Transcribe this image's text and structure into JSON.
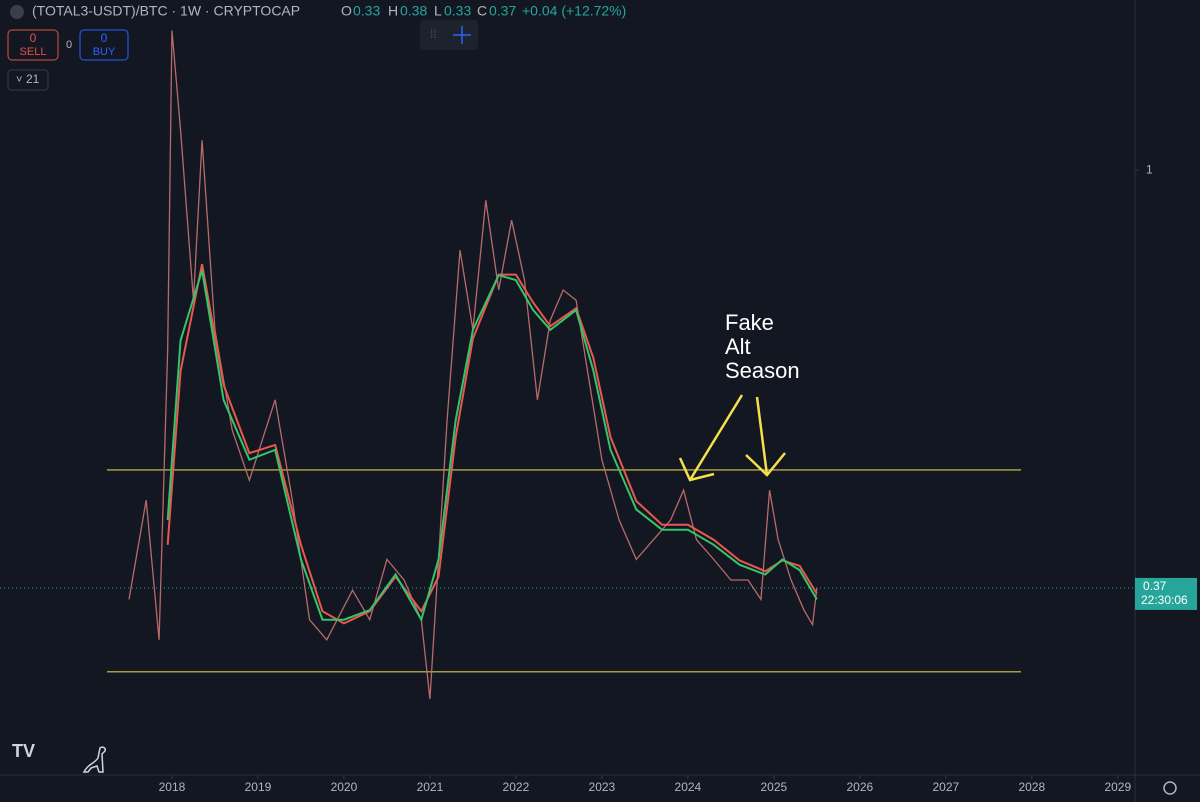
{
  "header": {
    "symbol": "(TOTAL3-USDT)/BTC · 1W · CRYPTOCAP",
    "o_label": "O",
    "o": 0.33,
    "h_label": "H",
    "h": 0.38,
    "l_label": "L",
    "l": 0.33,
    "c_label": "C",
    "c": 0.37,
    "change": "+0.04 (+12.72%)",
    "sell_count": 0,
    "sell": "SELL",
    "qty": 0,
    "buy_count": 0,
    "buy": "BUY",
    "indicator": "21"
  },
  "chart_data": {
    "type": "line",
    "log_scale": true,
    "xlim": [
      2016,
      2029.2
    ],
    "xticks": [
      2018,
      2019,
      2020,
      2021,
      2022,
      2023,
      2024,
      2025,
      2026,
      2027,
      2028,
      2029
    ],
    "ylim": [
      0.237,
      1.5
    ],
    "yticks": [
      1
    ],
    "series": [
      {
        "color": "#b86a6a",
        "x": [
          2017.5,
          2017.7,
          2017.85,
          2017.95,
          2018.0,
          2018.1,
          2018.25,
          2018.35,
          2018.5,
          2018.7,
          2018.9,
          2019.2,
          2019.4,
          2019.6,
          2019.8,
          2020.1,
          2020.3,
          2020.5,
          2020.7,
          2020.9,
          2021.0,
          2021.1,
          2021.2,
          2021.35,
          2021.5,
          2021.65,
          2021.8,
          2021.95,
          2022.1,
          2022.25,
          2022.4,
          2022.55,
          2022.7,
          2022.85,
          2023.0,
          2023.2,
          2023.4,
          2023.6,
          2023.8,
          2023.95,
          2024.1,
          2024.3,
          2024.5,
          2024.7,
          2024.85,
          2024.95,
          2025.05,
          2025.2,
          2025.35,
          2025.45,
          2025.5
        ],
        "values": [
          0.36,
          0.456,
          0.327,
          0.652,
          1.395,
          1.1,
          0.734,
          1.074,
          0.684,
          0.539,
          0.478,
          0.579,
          0.456,
          0.343,
          0.327,
          0.368,
          0.343,
          0.396,
          0.377,
          0.343,
          0.284,
          0.396,
          0.552,
          0.827,
          0.684,
          0.931,
          0.752,
          0.888,
          0.77,
          0.579,
          0.7,
          0.752,
          0.734,
          0.607,
          0.502,
          0.435,
          0.396,
          0.415,
          0.435,
          0.467,
          0.415,
          0.396,
          0.377,
          0.377,
          0.36,
          0.467,
          0.415,
          0.377,
          0.351,
          0.339,
          0.37
        ]
      },
      {
        "color": "#e8584f",
        "x": [
          2017.95,
          2018.1,
          2018.35,
          2018.6,
          2018.9,
          2019.2,
          2019.5,
          2019.75,
          2020.0,
          2020.3,
          2020.6,
          2020.9,
          2021.1,
          2021.3,
          2021.5,
          2021.8,
          2022.0,
          2022.2,
          2022.4,
          2022.7,
          2022.9,
          2023.1,
          2023.4,
          2023.7,
          2024.0,
          2024.3,
          2024.6,
          2024.9,
          2025.1,
          2025.3,
          2025.5
        ],
        "values": [
          0.41,
          0.62,
          0.8,
          0.6,
          0.51,
          0.52,
          0.41,
          0.35,
          0.34,
          0.35,
          0.38,
          0.35,
          0.38,
          0.53,
          0.67,
          0.78,
          0.78,
          0.73,
          0.69,
          0.72,
          0.64,
          0.53,
          0.455,
          0.43,
          0.43,
          0.415,
          0.395,
          0.385,
          0.395,
          0.39,
          0.365
        ]
      },
      {
        "color": "#35c46a",
        "x": [
          2017.95,
          2018.1,
          2018.35,
          2018.6,
          2018.9,
          2019.2,
          2019.5,
          2019.75,
          2020.0,
          2020.3,
          2020.6,
          2020.9,
          2021.1,
          2021.3,
          2021.5,
          2021.8,
          2022.0,
          2022.2,
          2022.4,
          2022.7,
          2022.9,
          2023.1,
          2023.4,
          2023.7,
          2024.0,
          2024.3,
          2024.6,
          2024.9,
          2025.1,
          2025.3,
          2025.5
        ],
        "values": [
          0.435,
          0.667,
          0.788,
          0.579,
          0.502,
          0.514,
          0.396,
          0.343,
          0.343,
          0.351,
          0.382,
          0.343,
          0.396,
          0.552,
          0.684,
          0.779,
          0.77,
          0.717,
          0.684,
          0.717,
          0.621,
          0.514,
          0.446,
          0.425,
          0.425,
          0.41,
          0.391,
          0.382,
          0.396,
          0.386,
          0.36
        ]
      }
    ],
    "hlines": [
      0.49,
      0.303
    ],
    "hline_color": "#d8c94a",
    "last_price": 0.37,
    "countdown": "22:30:06",
    "annotation": [
      "Fake",
      "Alt",
      "Season"
    ]
  }
}
